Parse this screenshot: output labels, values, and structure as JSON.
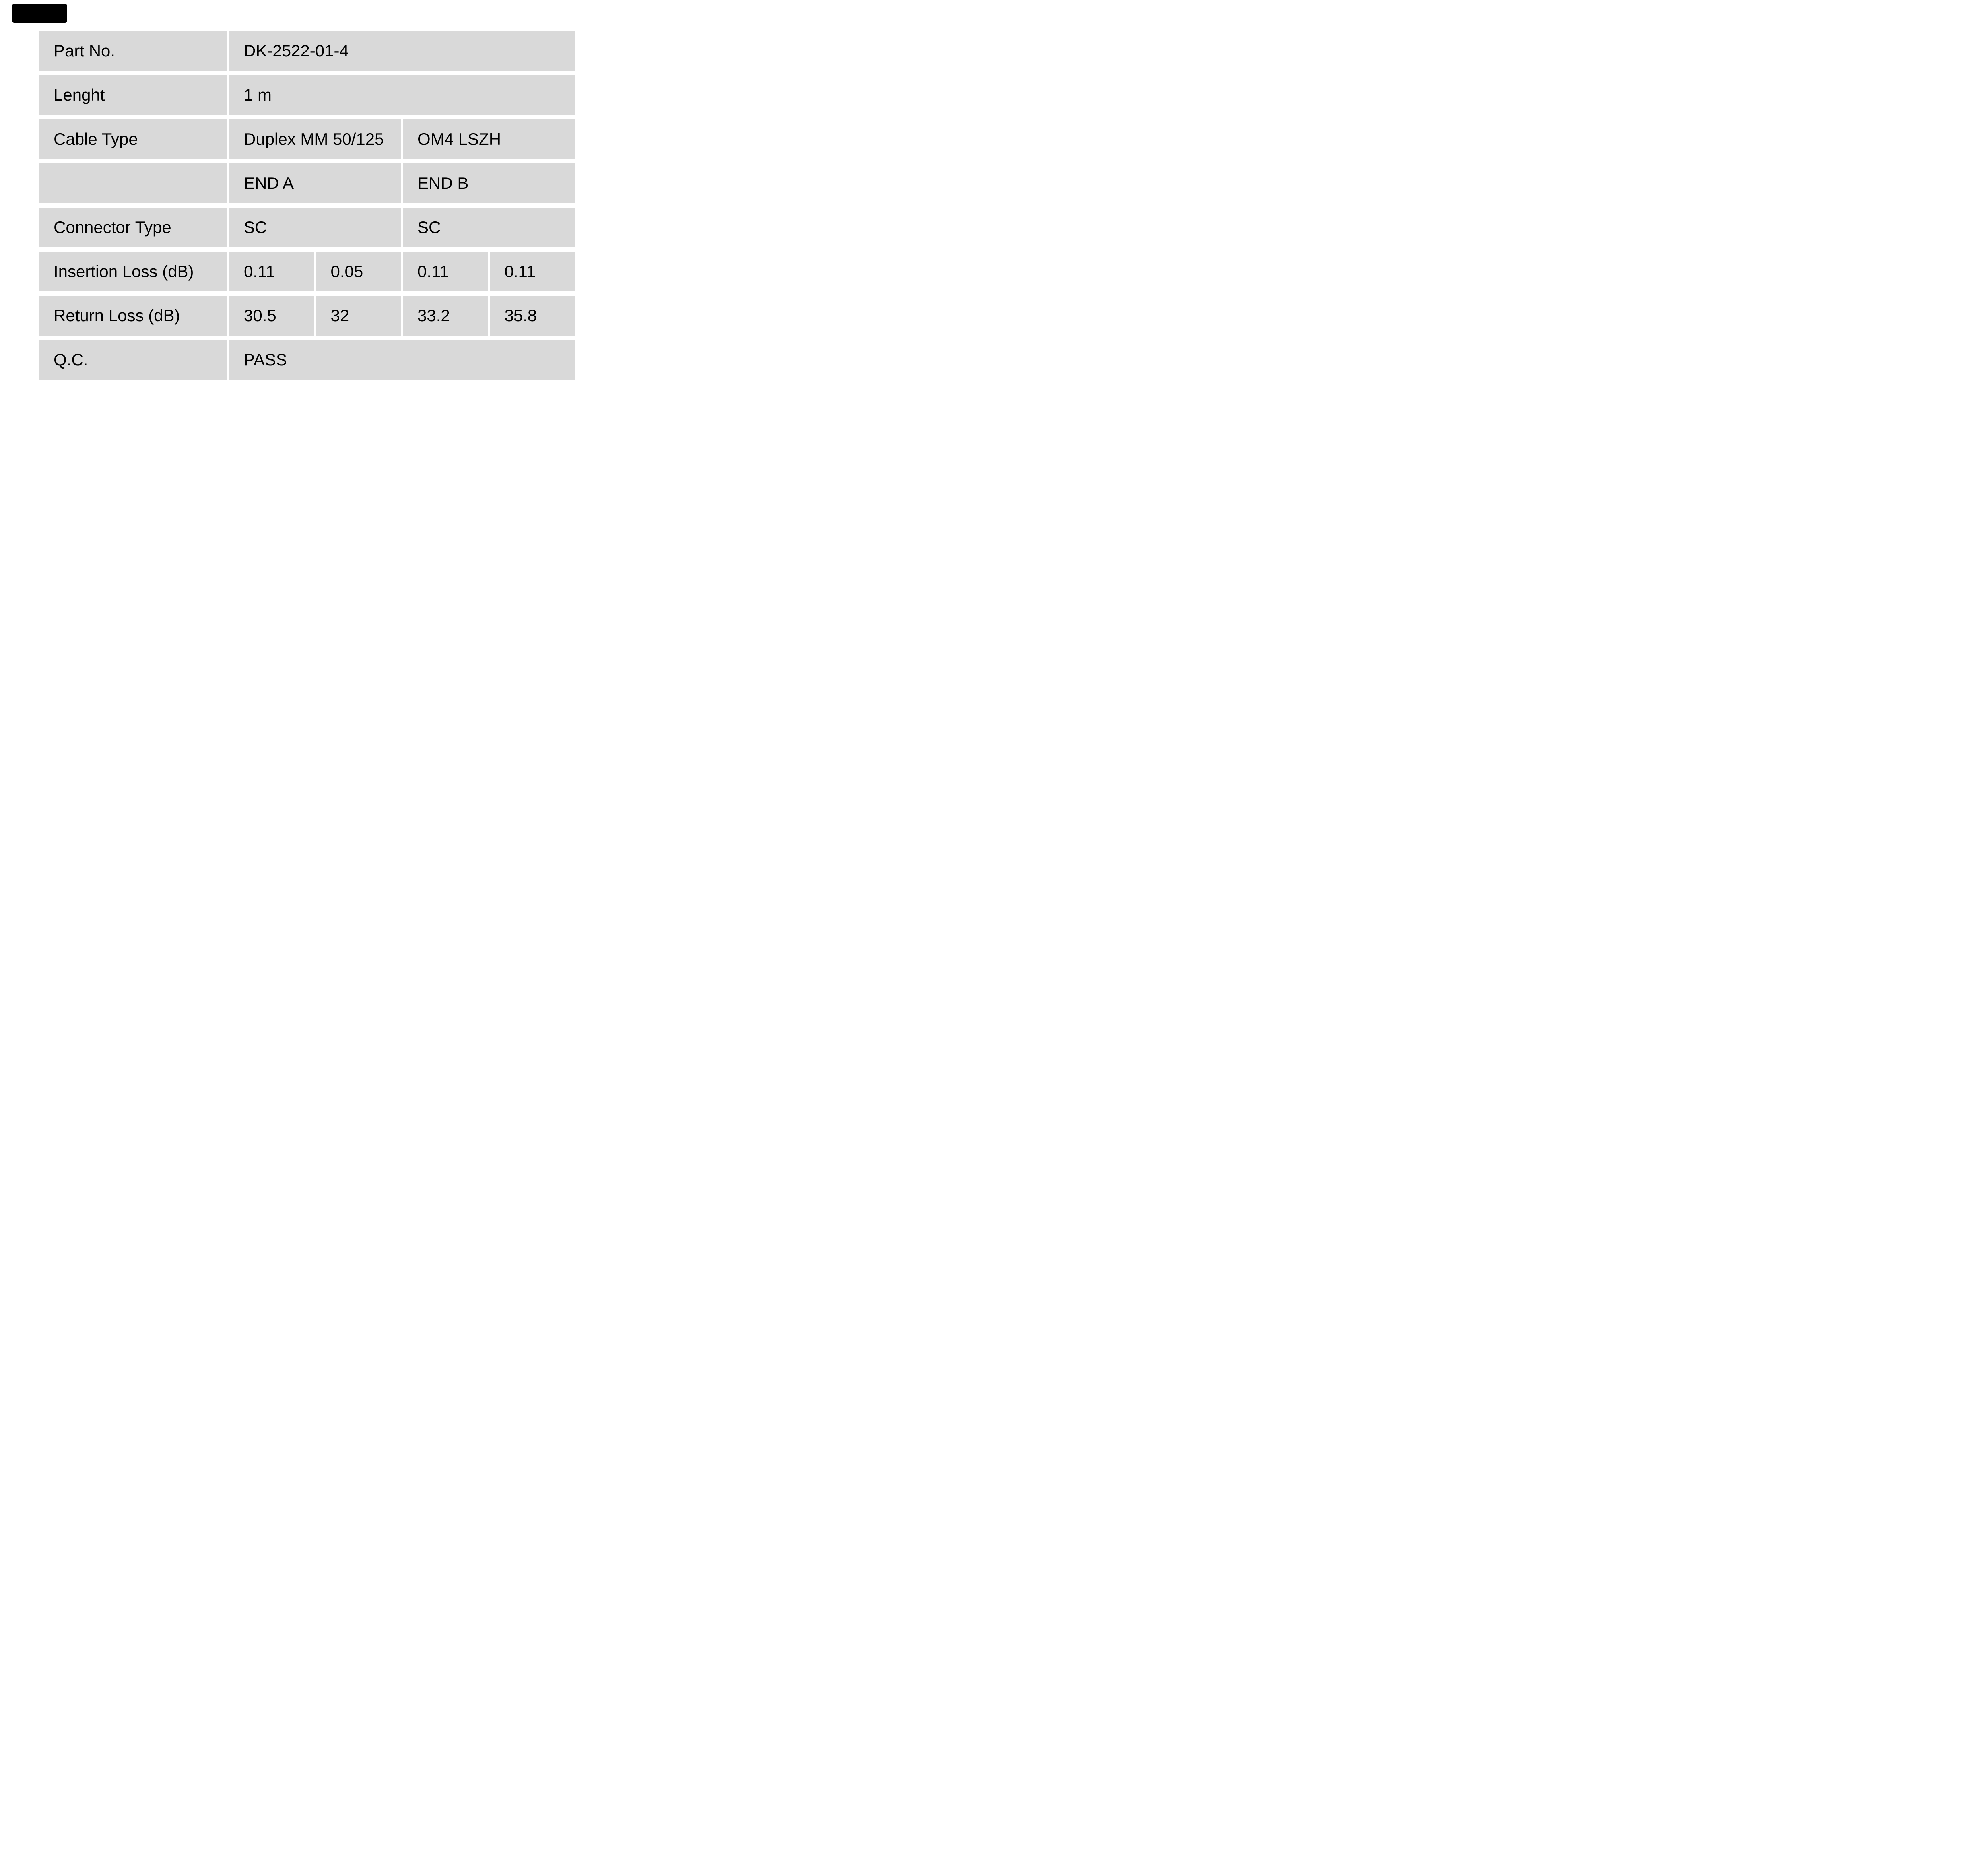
{
  "page": {
    "background_color": "#ffffff",
    "cell_color": "#d9d9d9",
    "text_color": "#000000",
    "logo": {
      "name": "black-logo-mark",
      "color": "#000000"
    }
  },
  "table": {
    "rows": [
      {
        "label": "Part No.",
        "cells": [
          {
            "text": "DK-2522-01-4",
            "span": 4
          }
        ]
      },
      {
        "label": "Lenght",
        "cells": [
          {
            "text": "1 m",
            "span": 4
          }
        ]
      },
      {
        "label": "Cable Type",
        "cells": [
          {
            "text": "Duplex MM 50/125",
            "span": 2
          },
          {
            "text": "OM4 LSZH",
            "span": 2
          }
        ]
      },
      {
        "label": "",
        "cells": [
          {
            "text": "END A",
            "span": 2
          },
          {
            "text": "END B",
            "span": 2
          }
        ]
      },
      {
        "label": "Connector Type",
        "cells": [
          {
            "text": "SC",
            "span": 2
          },
          {
            "text": "SC",
            "span": 2
          }
        ]
      },
      {
        "label": "Insertion Loss (dB)",
        "cells": [
          {
            "text": "0.11",
            "span": 1
          },
          {
            "text": "0.05",
            "span": 1
          },
          {
            "text": "0.11",
            "span": 1
          },
          {
            "text": "0.11",
            "span": 1
          }
        ]
      },
      {
        "label": "Return Loss (dB)",
        "cells": [
          {
            "text": "30.5",
            "span": 1
          },
          {
            "text": "32",
            "span": 1
          },
          {
            "text": "33.2",
            "span": 1
          },
          {
            "text": "35.8",
            "span": 1
          }
        ]
      },
      {
        "label": "Q.C.",
        "cells": [
          {
            "text": "PASS",
            "span": 4
          }
        ]
      }
    ]
  }
}
